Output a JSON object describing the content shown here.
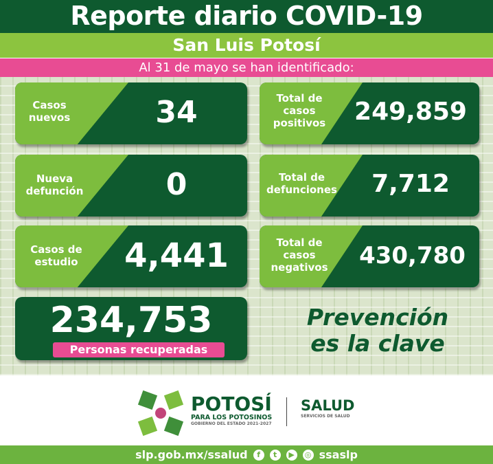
{
  "header": {
    "title": "Reporte diario COVID-19",
    "state": "San Luis Potosí",
    "date_line": "Al 31 de mayo se han identificado:"
  },
  "cards": [
    {
      "label": "Casos nuevos",
      "value": "34"
    },
    {
      "label": "Total de casos positivos",
      "value": "249,859"
    },
    {
      "label": "Nueva defunción",
      "value": "0"
    },
    {
      "label": "Total de defunciones",
      "value": "7,712"
    },
    {
      "label": "Casos de estudio",
      "value": "4,441"
    },
    {
      "label": "Total de casos negativos",
      "value": "430,780"
    }
  ],
  "recovered": {
    "value": "234,753",
    "label": "Personas recuperadas"
  },
  "slogan": {
    "line1": "Prevención",
    "line2": "es la clave"
  },
  "logo": {
    "name": "POTOSÍ",
    "tagline": "PARA LOS POTOSINOS",
    "sub": "GOBIERNO DEL ESTADO 2021-2027",
    "salud": "SALUD",
    "salud_sub": "SERVICIOS DE SALUD"
  },
  "footer": {
    "url": "slp.gob.mx/ssalud",
    "handle": "ssaslp",
    "icons": [
      "facebook-icon",
      "twitter-icon",
      "youtube-icon",
      "instagram-icon"
    ]
  },
  "colors": {
    "dark_green": "#0e5a2f",
    "lime": "#8cc43f",
    "pink": "#e84c93",
    "light_green": "#7dbd3e"
  }
}
